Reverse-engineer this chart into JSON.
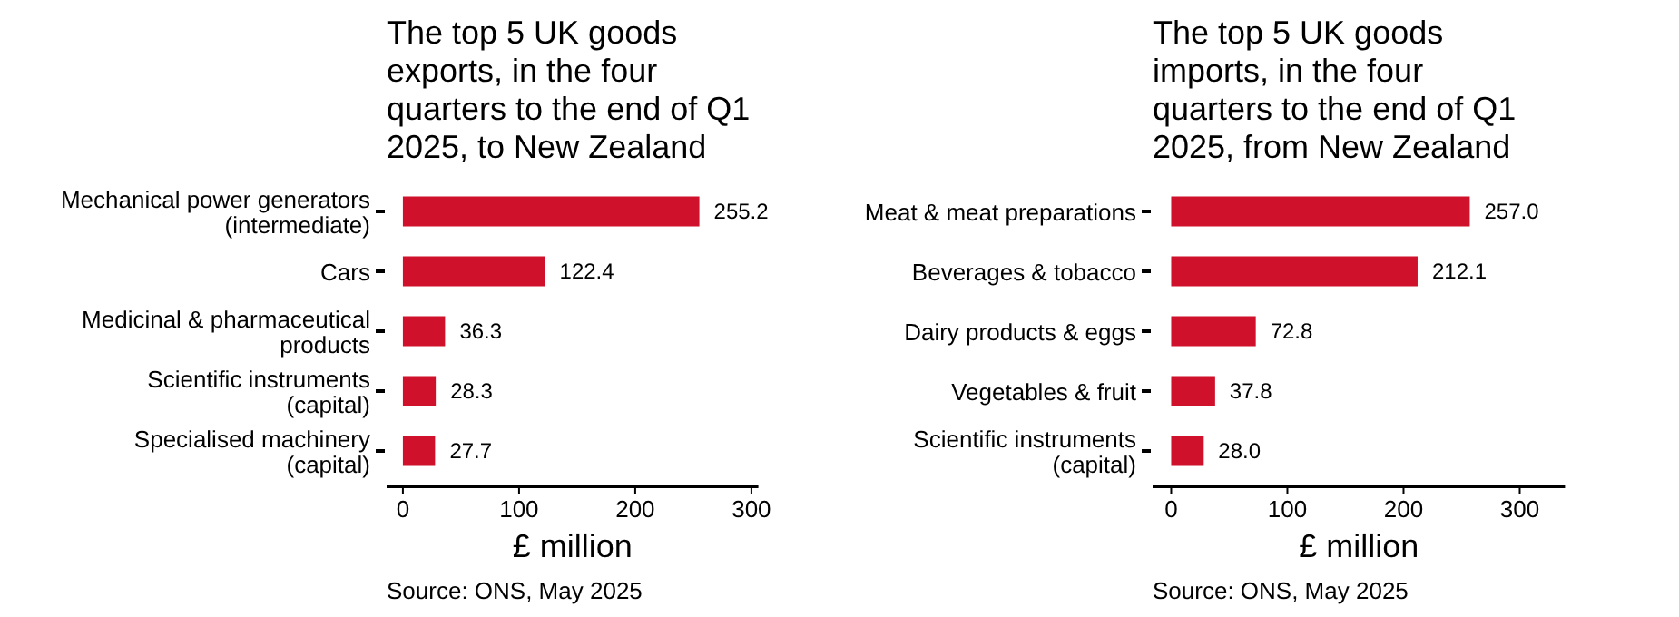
{
  "chart_data": [
    {
      "type": "bar",
      "orientation": "horizontal",
      "title": "The top 5 UK goods exports, in the four quarters to the end of Q1 2025, to New Zealand",
      "xlabel": "£ million",
      "categories": [
        "Mechanical power generators (intermediate)",
        "Cars",
        "Medicinal & pharmaceutical products",
        "Scientific instruments (capital)",
        "Specialised machinery (capital)"
      ],
      "values": [
        255.2,
        122.4,
        36.3,
        28.3,
        27.7
      ],
      "value_labels": [
        "255.2",
        "122.4",
        "36.3",
        "28.3",
        "27.7"
      ],
      "color": "#d0112b",
      "xlim": [
        -14,
        306
      ],
      "xticks": [
        0,
        100,
        200,
        300
      ],
      "grid": false,
      "annotations": [
        "Source: ONS, May 2025"
      ]
    },
    {
      "type": "bar",
      "orientation": "horizontal",
      "title": "The top 5 UK goods imports, in the four quarters to the end of Q1 2025, from New Zealand",
      "xlabel": "£ million",
      "categories": [
        "Meat & meat preparations",
        "Beverages & tobacco",
        "Dairy products & eggs",
        "Vegetables & fruit",
        "Scientific instruments (capital)"
      ],
      "values": [
        257.0,
        212.1,
        72.8,
        37.8,
        28.0
      ],
      "value_labels": [
        "257.0",
        "212.1",
        "72.8",
        "37.8",
        "28.0"
      ],
      "color": "#d0112b",
      "xlim": [
        -16,
        339
      ],
      "xticks": [
        0,
        100,
        200,
        300
      ],
      "grid": false,
      "annotations": [
        "Source: ONS, May 2025"
      ]
    }
  ]
}
